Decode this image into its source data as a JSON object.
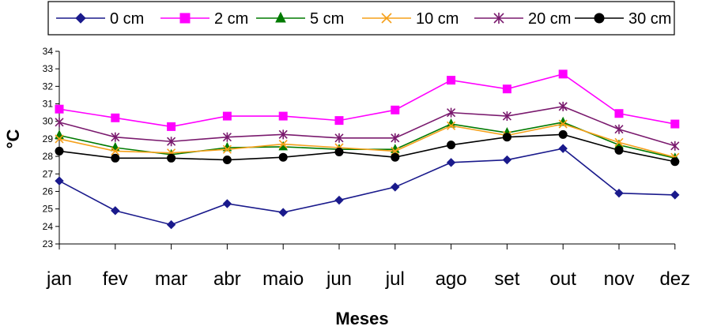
{
  "chart_data": {
    "type": "line",
    "title": "",
    "xlabel": "Meses",
    "ylabel": "°C",
    "categories": [
      "jan",
      "fev",
      "mar",
      "abr",
      "maio",
      "jun",
      "jul",
      "ago",
      "set",
      "out",
      "nov",
      "dez"
    ],
    "ylim": [
      23,
      34
    ],
    "yticks": [
      "23",
      "24",
      "25",
      "26",
      "27",
      "28",
      "29",
      "30",
      "31",
      "32",
      "33",
      "34"
    ],
    "grid": false,
    "legend_position": "top",
    "series": [
      {
        "name": "0 cm",
        "color": "#1a1a8c",
        "marker": "diamond",
        "values": [
          26.6,
          24.9,
          24.1,
          25.3,
          24.8,
          25.5,
          26.25,
          27.65,
          27.8,
          28.45,
          25.9,
          25.8
        ]
      },
      {
        "name": "2 cm",
        "color": "#ff00ff",
        "marker": "square",
        "values": [
          30.7,
          30.2,
          29.7,
          30.3,
          30.3,
          30.05,
          30.65,
          32.35,
          31.85,
          32.7,
          30.45,
          29.85
        ]
      },
      {
        "name": "5 cm",
        "color": "#007a00",
        "marker": "triangle",
        "values": [
          29.2,
          28.5,
          28.1,
          28.5,
          28.55,
          28.4,
          28.4,
          29.85,
          29.35,
          29.95,
          28.65,
          27.9
        ]
      },
      {
        "name": "10 cm",
        "color": "#f5a01a",
        "marker": "x",
        "values": [
          29.0,
          28.3,
          28.2,
          28.4,
          28.7,
          28.5,
          28.3,
          29.75,
          29.2,
          29.85,
          28.8,
          27.95
        ]
      },
      {
        "name": "20 cm",
        "color": "#7a1a6e",
        "marker": "star",
        "values": [
          29.95,
          29.1,
          28.85,
          29.1,
          29.25,
          29.05,
          29.05,
          30.5,
          30.3,
          30.85,
          29.55,
          28.6
        ]
      },
      {
        "name": "30 cm",
        "color": "#000000",
        "marker": "circle",
        "values": [
          28.3,
          27.9,
          27.9,
          27.8,
          27.95,
          28.25,
          27.95,
          28.65,
          29.1,
          29.25,
          28.35,
          27.7
        ]
      }
    ]
  }
}
